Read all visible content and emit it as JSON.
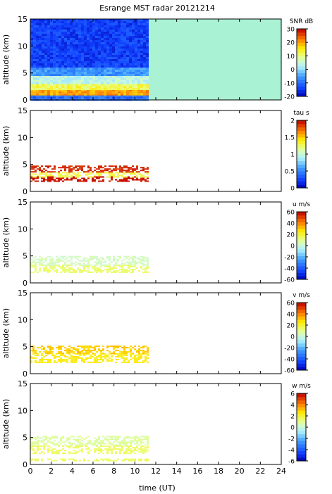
{
  "title": "Esrange MST radar 20121214",
  "x_axis_label": "time (UT)",
  "x_ticks": [
    "0",
    "2",
    "4",
    "6",
    "8",
    "10",
    "12",
    "14",
    "16",
    "18",
    "20",
    "22",
    "24"
  ],
  "chart_data": [
    {
      "type": "heatmap",
      "panel": "snr",
      "ylabel": "altitude (km)",
      "colorbar_label": "SNR dB",
      "xlim": [
        0,
        24
      ],
      "ylim": [
        0,
        15
      ],
      "y_ticks": [
        "0",
        "5",
        "10",
        "15"
      ],
      "clim": [
        -20,
        30
      ],
      "colorbar_ticks": [
        "-20",
        "-10",
        "0",
        "10",
        "20",
        "30"
      ],
      "data_time_range": [
        0,
        11.2
      ],
      "background_fill_after_data": "#aaf2d4",
      "layers": [
        {
          "alt": [
            0,
            1.0
          ],
          "value": -10
        },
        {
          "alt": [
            1.0,
            2.0
          ],
          "value": 20
        },
        {
          "alt": [
            2.0,
            3.0
          ],
          "value": 12
        },
        {
          "alt": [
            3.0,
            4.5
          ],
          "value": 4
        },
        {
          "alt": [
            4.5,
            6.0
          ],
          "value": -6
        },
        {
          "alt": [
            6.0,
            15.0
          ],
          "value": -14
        }
      ]
    },
    {
      "type": "heatmap",
      "panel": "tau",
      "ylabel": "altitude (km)",
      "colorbar_label": "tau s",
      "xlim": [
        0,
        24
      ],
      "ylim": [
        0,
        15
      ],
      "y_ticks": [
        "0",
        "5",
        "10",
        "15"
      ],
      "clim": [
        0,
        2
      ],
      "colorbar_ticks": [
        "0",
        "0.5",
        "1",
        "1.5",
        "2"
      ],
      "data_time_range": [
        0,
        11.2
      ],
      "layers": [
        {
          "alt": [
            2.0,
            2.8
          ],
          "value": 1.95
        },
        {
          "alt": [
            2.8,
            3.6
          ],
          "value": 1.3
        },
        {
          "alt": [
            3.6,
            4.8
          ],
          "value": 1.9
        }
      ]
    },
    {
      "type": "heatmap",
      "panel": "u",
      "ylabel": "altitude (km)",
      "colorbar_label": "u m/s",
      "xlim": [
        0,
        24
      ],
      "ylim": [
        0,
        15
      ],
      "y_ticks": [
        "0",
        "5",
        "10",
        "15"
      ],
      "clim": [
        -60,
        60
      ],
      "colorbar_ticks": [
        "-60",
        "-40",
        "-20",
        "0",
        "20",
        "40",
        "60"
      ],
      "data_time_range": [
        0,
        11.2
      ],
      "layers": [
        {
          "alt": [
            2.0,
            3.4
          ],
          "value": 14
        },
        {
          "alt": [
            3.4,
            5.0
          ],
          "value": 4
        }
      ]
    },
    {
      "type": "heatmap",
      "panel": "v",
      "ylabel": "altitude (km)",
      "colorbar_label": "v m/s",
      "xlim": [
        0,
        24
      ],
      "ylim": [
        0,
        15
      ],
      "y_ticks": [
        "0",
        "5",
        "10",
        "15"
      ],
      "clim": [
        -60,
        60
      ],
      "colorbar_ticks": [
        "-60",
        "-40",
        "-20",
        "0",
        "20",
        "40",
        "60"
      ],
      "data_time_range": [
        0,
        11.2
      ],
      "layers": [
        {
          "alt": [
            2.0,
            3.8
          ],
          "value": 24
        },
        {
          "alt": [
            3.8,
            5.2
          ],
          "value": 30
        }
      ]
    },
    {
      "type": "heatmap",
      "panel": "w",
      "ylabel": "altitude (km)",
      "colorbar_label": "w m/s",
      "xlim": [
        0,
        24
      ],
      "ylim": [
        0,
        15
      ],
      "y_ticks": [
        "0",
        "5",
        "10",
        "15"
      ],
      "clim": [
        -6,
        6
      ],
      "colorbar_ticks": [
        "-6",
        "-4",
        "-2",
        "0",
        "2",
        "4",
        "6"
      ],
      "data_time_range": [
        0,
        11.2
      ],
      "layers": [
        {
          "alt": [
            0.8,
            1.1
          ],
          "value": 1.5
        },
        {
          "alt": [
            2.0,
            3.5
          ],
          "value": 1.5
        },
        {
          "alt": [
            3.5,
            5.3
          ],
          "value": 0.8
        }
      ]
    }
  ]
}
